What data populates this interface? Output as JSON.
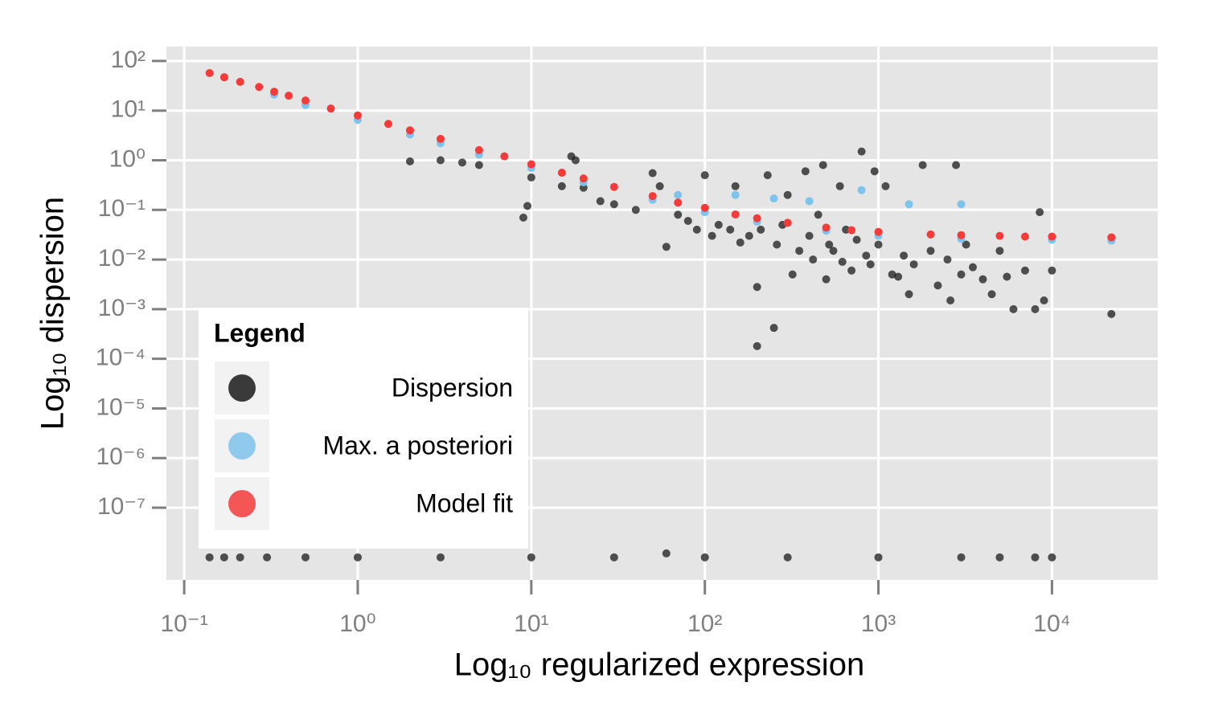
{
  "chart_data": {
    "type": "scatter",
    "x_label": "Log₁₀ regularized expression",
    "y_label": "Log₁₀ dispersion",
    "legend_title": "Legend",
    "legend_position": "bottom-left",
    "log_x": true,
    "log_y": true,
    "grid": true,
    "xlim": [
      0.079,
      40700
    ],
    "ylim": [
      3.5e-09,
      195
    ],
    "xticks": [
      {
        "value": 0.1,
        "label": "10⁻¹"
      },
      {
        "value": 1,
        "label": "10⁰"
      },
      {
        "value": 10,
        "label": "10¹"
      },
      {
        "value": 100,
        "label": "10²"
      },
      {
        "value": 1000,
        "label": "10³"
      },
      {
        "value": 10000,
        "label": "10⁴"
      }
    ],
    "yticks": [
      {
        "value": 100,
        "label": "10²"
      },
      {
        "value": 10,
        "label": "10¹"
      },
      {
        "value": 1,
        "label": "10⁰"
      },
      {
        "value": 0.1,
        "label": "10⁻¹"
      },
      {
        "value": 0.01,
        "label": "10⁻²"
      },
      {
        "value": 0.001,
        "label": "10⁻³"
      },
      {
        "value": 0.0001,
        "label": "10⁻⁴"
      },
      {
        "value": 1e-05,
        "label": "10⁻⁵"
      },
      {
        "value": 1e-06,
        "label": "10⁻⁶"
      },
      {
        "value": 1e-07,
        "label": "10⁻⁷"
      }
    ],
    "series": [
      {
        "name": "Dispersion",
        "color": "#1a1a1a",
        "x": [
          2,
          3,
          4,
          5,
          10,
          9,
          9.5,
          15,
          17,
          18,
          20,
          25,
          30,
          40,
          50,
          55,
          60,
          70,
          80,
          90,
          100,
          110,
          120,
          140,
          150,
          160,
          180,
          200,
          200,
          210,
          230,
          250,
          260,
          280,
          300,
          320,
          350,
          380,
          400,
          420,
          450,
          480,
          500,
          520,
          550,
          600,
          620,
          650,
          700,
          750,
          800,
          850,
          900,
          950,
          1000,
          1100,
          1200,
          1300,
          1400,
          1500,
          1600,
          1800,
          2000,
          2200,
          2500,
          2600,
          2800,
          3000,
          3200,
          3500,
          4000,
          4500,
          5000,
          5500,
          6000,
          7000,
          8000,
          8500,
          9000,
          10000,
          22000,
          0.14,
          0.17,
          0.21,
          0.3,
          0.5,
          1,
          3,
          10,
          30,
          60,
          100,
          300,
          1000,
          3000,
          5000,
          8000,
          10000
        ],
        "values": [
          0.95,
          1.0,
          0.9,
          0.8,
          0.45,
          0.07,
          0.12,
          0.3,
          1.2,
          1.0,
          0.28,
          0.15,
          0.13,
          0.1,
          0.55,
          0.3,
          0.018,
          0.08,
          0.06,
          0.04,
          0.5,
          0.03,
          0.05,
          0.04,
          0.3,
          0.022,
          0.03,
          0.0028,
          0.00018,
          0.04,
          0.5,
          0.00042,
          0.02,
          0.05,
          0.2,
          0.005,
          0.015,
          0.6,
          0.03,
          0.01,
          0.08,
          0.8,
          0.004,
          0.02,
          0.015,
          0.3,
          0.009,
          0.04,
          0.006,
          0.025,
          1.5,
          0.012,
          0.008,
          0.6,
          0.02,
          0.3,
          0.005,
          0.0045,
          0.012,
          0.002,
          0.008,
          0.8,
          0.015,
          0.003,
          0.01,
          0.0015,
          0.8,
          0.005,
          0.02,
          0.007,
          0.004,
          0.002,
          0.015,
          0.0045,
          0.001,
          0.006,
          0.001,
          0.09,
          0.0015,
          0.006,
          0.0008,
          1e-08,
          1e-08,
          1e-08,
          1e-08,
          1e-08,
          1e-08,
          1e-08,
          1e-08,
          1e-08,
          1.2e-08,
          1e-08,
          1e-08,
          1e-08,
          1e-08,
          1e-08,
          1e-08,
          1e-08
        ]
      },
      {
        "name": "Max. a posteriori",
        "color": "#7ec3ec",
        "x": [
          0.33,
          0.5,
          1,
          2,
          3,
          5,
          10,
          20,
          50,
          100,
          200,
          500,
          1000,
          3000,
          10000,
          22000,
          70,
          150,
          250,
          400,
          800,
          1500,
          3000
        ],
        "values": [
          21,
          13,
          6.5,
          3.3,
          2.2,
          1.3,
          0.7,
          0.36,
          0.16,
          0.09,
          0.058,
          0.038,
          0.03,
          0.026,
          0.025,
          0.024,
          0.2,
          0.2,
          0.17,
          0.15,
          0.25,
          0.13,
          0.13
        ]
      },
      {
        "name": "Model fit",
        "color": "#f53a3a",
        "x": [
          0.14,
          0.17,
          0.21,
          0.27,
          0.33,
          0.4,
          0.5,
          0.7,
          1,
          1.5,
          2,
          3,
          5,
          7,
          10,
          15,
          20,
          30,
          50,
          70,
          100,
          150,
          200,
          300,
          500,
          700,
          1000,
          2000,
          3000,
          5000,
          7000,
          10000,
          22000
        ],
        "values": [
          57,
          47,
          38,
          30,
          24,
          20,
          16,
          11,
          8.0,
          5.4,
          4.0,
          2.7,
          1.6,
          1.2,
          0.83,
          0.56,
          0.43,
          0.29,
          0.19,
          0.14,
          0.11,
          0.081,
          0.068,
          0.055,
          0.044,
          0.039,
          0.036,
          0.032,
          0.031,
          0.03,
          0.029,
          0.029,
          0.028
        ]
      }
    ]
  }
}
